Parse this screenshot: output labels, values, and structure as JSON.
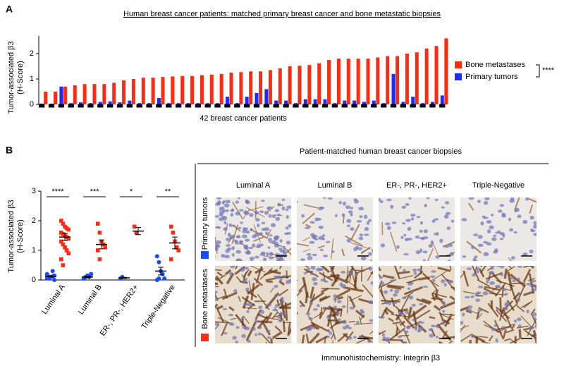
{
  "panels": [
    "A",
    "B"
  ],
  "chart_data": [
    {
      "type": "bar",
      "title": "Human breast cancer patients: matched primary breast cancer and bone metastatic biopsies",
      "ylabel": [
        "Tumor-associated β3",
        "(H-Score)"
      ],
      "xlabel": "42 breast cancer patients",
      "ylim": [
        0,
        2.7
      ],
      "yticks": [
        0,
        1,
        2
      ],
      "series": [
        {
          "name": "Bone metastases",
          "color": "#ff2a10",
          "values": [
            0.5,
            0.5,
            0.7,
            0.75,
            0.8,
            0.8,
            0.8,
            0.85,
            0.95,
            1.0,
            1.05,
            1.05,
            1.08,
            1.1,
            1.12,
            1.12,
            1.15,
            1.17,
            1.2,
            1.25,
            1.27,
            1.3,
            1.3,
            1.35,
            1.42,
            1.5,
            1.52,
            1.55,
            1.62,
            1.75,
            1.8,
            1.8,
            1.8,
            1.8,
            1.85,
            1.9,
            1.9,
            2.0,
            2.05,
            2.2,
            2.3,
            2.6
          ]
        },
        {
          "name": "Primary tumors",
          "color": "#1a2cff",
          "values": [
            0.03,
            0.03,
            0.7,
            0.05,
            0.08,
            0.05,
            0.1,
            0.12,
            0.08,
            0.15,
            0.05,
            0.05,
            0.25,
            0.05,
            0.05,
            0.05,
            0.05,
            0.05,
            0.05,
            0.3,
            0.05,
            0.3,
            0.45,
            0.6,
            0.15,
            0.15,
            0.05,
            0.2,
            0.2,
            0.2,
            0.05,
            0.15,
            0.15,
            0.1,
            0.15,
            0.05,
            1.2,
            0.1,
            0.3,
            0.05,
            0.1,
            0.35
          ]
        }
      ],
      "legend": "right",
      "annotation": "****"
    },
    {
      "type": "dot",
      "ylabel": [
        "Tumor-associated β3",
        "(H-Score)"
      ],
      "categories": [
        "Luminal A",
        "Luminal B",
        "ER-, PR-, HER2+",
        "Triple-Negative"
      ],
      "ylim": [
        0,
        3
      ],
      "yticks": [
        0,
        1,
        2,
        3
      ],
      "significance": [
        "****",
        "***",
        "*",
        "**"
      ],
      "series": [
        {
          "name": "Primary tumors",
          "color": "#1a4cff",
          "values": [
            [
              0.05,
              0.08,
              0.1,
              0.12,
              0.15,
              0.2,
              0.05,
              0.1,
              0.3,
              0.0,
              0.18,
              0.1
            ],
            [
              0.05,
              0.1,
              0.15,
              0.1,
              0.2,
              0.05
            ],
            [
              0.05,
              0.1
            ],
            [
              0.8,
              0.6,
              0.3,
              0.2,
              0.05,
              0.0,
              0.05
            ]
          ],
          "mean": [
            0.12,
            0.1,
            0.07,
            0.3
          ],
          "sem": [
            0.02,
            0.03,
            0.02,
            0.13
          ]
        },
        {
          "name": "Bone metastases",
          "color": "#ff2a10",
          "values": [
            [
              2.0,
              1.9,
              1.8,
              1.75,
              1.7,
              1.6,
              1.55,
              1.5,
              1.45,
              1.4,
              1.3,
              1.2,
              1.1,
              1.0,
              0.9,
              0.7,
              0.5
            ],
            [
              1.9,
              1.6,
              1.3,
              1.2,
              1.1,
              1.0,
              0.7
            ],
            [
              1.8,
              1.6
            ],
            [
              1.8,
              1.6,
              1.3,
              1.1,
              1.0,
              0.7
            ]
          ],
          "mean": [
            1.45,
            1.2,
            1.65,
            1.25
          ],
          "sem": [
            0.12,
            0.15,
            0.12,
            0.2
          ]
        }
      ]
    }
  ],
  "micrographs": {
    "title": "Patient-matched human breast cancer biopsies",
    "columns": [
      "Luminal A",
      "Luminal B",
      "ER-, PR-, HER2+",
      "Triple-Negative"
    ],
    "rows": [
      "Primary tumors",
      "Bone metastases"
    ],
    "caption": "Immunohistochemistry: Integrin β3"
  }
}
